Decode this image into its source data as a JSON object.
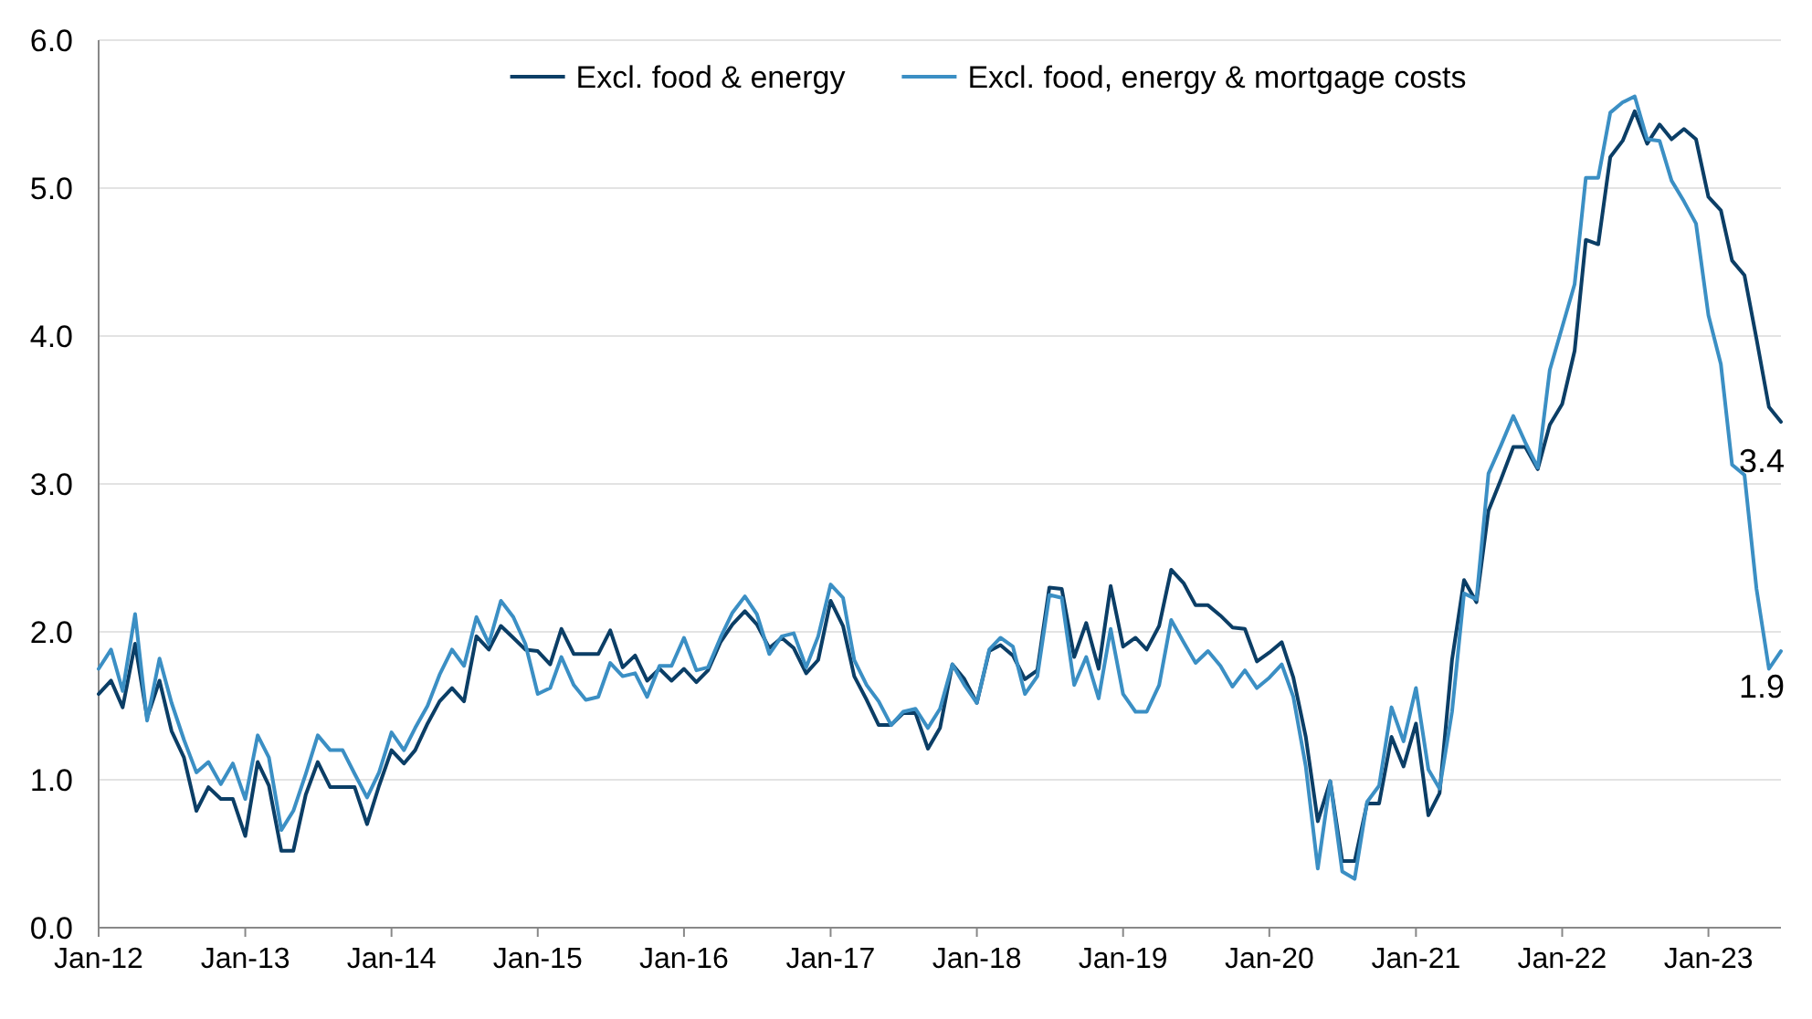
{
  "chart_data": {
    "type": "line",
    "x": [
      "2012-01",
      "2012-02",
      "2012-03",
      "2012-04",
      "2012-05",
      "2012-06",
      "2012-07",
      "2012-08",
      "2012-09",
      "2012-10",
      "2012-11",
      "2012-12",
      "2013-01",
      "2013-02",
      "2013-03",
      "2013-04",
      "2013-05",
      "2013-06",
      "2013-07",
      "2013-08",
      "2013-09",
      "2013-10",
      "2013-11",
      "2013-12",
      "2014-01",
      "2014-02",
      "2014-03",
      "2014-04",
      "2014-05",
      "2014-06",
      "2014-07",
      "2014-08",
      "2014-09",
      "2014-10",
      "2014-11",
      "2014-12",
      "2015-01",
      "2015-02",
      "2015-03",
      "2015-04",
      "2015-05",
      "2015-06",
      "2015-07",
      "2015-08",
      "2015-09",
      "2015-10",
      "2015-11",
      "2015-12",
      "2016-01",
      "2016-02",
      "2016-03",
      "2016-04",
      "2016-05",
      "2016-06",
      "2016-07",
      "2016-08",
      "2016-09",
      "2016-10",
      "2016-11",
      "2016-12",
      "2017-01",
      "2017-02",
      "2017-03",
      "2017-04",
      "2017-05",
      "2017-06",
      "2017-07",
      "2017-08",
      "2017-09",
      "2017-10",
      "2017-11",
      "2017-12",
      "2018-01",
      "2018-02",
      "2018-03",
      "2018-04",
      "2018-05",
      "2018-06",
      "2018-07",
      "2018-08",
      "2018-09",
      "2018-10",
      "2018-11",
      "2018-12",
      "2019-01",
      "2019-02",
      "2019-03",
      "2019-04",
      "2019-05",
      "2019-06",
      "2019-07",
      "2019-08",
      "2019-09",
      "2019-10",
      "2019-11",
      "2019-12",
      "2020-01",
      "2020-02",
      "2020-03",
      "2020-04",
      "2020-05",
      "2020-06",
      "2020-07",
      "2020-08",
      "2020-09",
      "2020-10",
      "2020-11",
      "2020-12",
      "2021-01",
      "2021-02",
      "2021-03",
      "2021-04",
      "2021-05",
      "2021-06",
      "2021-07",
      "2021-08",
      "2021-09",
      "2021-10",
      "2021-11",
      "2021-12",
      "2022-01",
      "2022-02",
      "2022-03",
      "2022-04",
      "2022-05",
      "2022-06",
      "2022-07",
      "2022-08",
      "2022-09",
      "2022-10",
      "2022-11",
      "2022-12",
      "2023-01",
      "2023-02",
      "2023-03",
      "2023-04",
      "2023-05",
      "2023-06",
      "2023-07"
    ],
    "series": [
      {
        "name": "Excl. food & energy",
        "color": "#0b3e66",
        "values": [
          1.58,
          1.67,
          1.49,
          1.92,
          1.42,
          1.67,
          1.33,
          1.15,
          0.79,
          0.95,
          0.87,
          0.87,
          0.62,
          1.12,
          0.96,
          0.52,
          0.52,
          0.9,
          1.12,
          0.95,
          0.95,
          0.95,
          0.7,
          0.96,
          1.2,
          1.11,
          1.2,
          1.38,
          1.53,
          1.62,
          1.53,
          1.97,
          1.88,
          2.04,
          1.96,
          1.88,
          1.87,
          1.78,
          2.02,
          1.85,
          1.85,
          1.85,
          2.01,
          1.76,
          1.84,
          1.67,
          1.75,
          1.67,
          1.75,
          1.66,
          1.74,
          1.93,
          2.05,
          2.14,
          2.05,
          1.89,
          1.96,
          1.89,
          1.72,
          1.81,
          2.21,
          2.04,
          1.7,
          1.54,
          1.37,
          1.37,
          1.45,
          1.45,
          1.21,
          1.35,
          1.78,
          1.68,
          1.52,
          1.87,
          1.91,
          1.84,
          1.68,
          1.74,
          2.3,
          2.29,
          1.83,
          2.06,
          1.75,
          2.31,
          1.9,
          1.96,
          1.88,
          2.04,
          2.42,
          2.33,
          2.18,
          2.18,
          2.11,
          2.03,
          2.02,
          1.8,
          1.86,
          1.93,
          1.69,
          1.29,
          0.72,
          0.99,
          0.45,
          0.45,
          0.84,
          0.84,
          1.29,
          1.09,
          1.38,
          0.76,
          0.91,
          1.81,
          2.35,
          2.2,
          2.82,
          3.03,
          3.25,
          3.25,
          3.1,
          3.4,
          3.54,
          3.9,
          4.65,
          4.62,
          5.21,
          5.32,
          5.52,
          5.3,
          5.43,
          5.33,
          5.4,
          5.33,
          4.94,
          4.85,
          4.51,
          4.41,
          3.98,
          3.52,
          3.42
        ]
      },
      {
        "name": "Excl. food, energy & mortgage costs",
        "color": "#3b8fc4",
        "values": [
          1.75,
          1.88,
          1.6,
          2.12,
          1.4,
          1.82,
          1.52,
          1.27,
          1.05,
          1.12,
          0.97,
          1.11,
          0.87,
          1.3,
          1.15,
          0.66,
          0.79,
          1.04,
          1.3,
          1.2,
          1.2,
          1.04,
          0.88,
          1.05,
          1.32,
          1.2,
          1.35,
          1.5,
          1.71,
          1.88,
          1.77,
          2.1,
          1.92,
          2.21,
          2.1,
          1.92,
          1.58,
          1.62,
          1.83,
          1.64,
          1.54,
          1.56,
          1.79,
          1.7,
          1.72,
          1.56,
          1.77,
          1.77,
          1.96,
          1.74,
          1.76,
          1.96,
          2.13,
          2.24,
          2.12,
          1.85,
          1.97,
          1.99,
          1.76,
          1.97,
          2.32,
          2.23,
          1.81,
          1.64,
          1.53,
          1.37,
          1.46,
          1.48,
          1.35,
          1.48,
          1.78,
          1.64,
          1.52,
          1.88,
          1.96,
          1.9,
          1.58,
          1.7,
          2.25,
          2.23,
          1.64,
          1.83,
          1.55,
          2.02,
          1.58,
          1.46,
          1.46,
          1.64,
          2.08,
          1.93,
          1.79,
          1.87,
          1.77,
          1.63,
          1.74,
          1.62,
          1.69,
          1.78,
          1.56,
          1.09,
          0.4,
          0.99,
          0.38,
          0.33,
          0.85,
          0.96,
          1.49,
          1.26,
          1.62,
          1.07,
          0.94,
          1.46,
          2.26,
          2.22,
          3.07,
          3.26,
          3.46,
          3.28,
          3.11,
          3.77,
          4.06,
          4.35,
          5.07,
          5.07,
          5.51,
          5.58,
          5.62,
          5.33,
          5.32,
          5.05,
          4.91,
          4.76,
          4.14,
          3.81,
          3.13,
          3.06,
          2.29,
          1.75,
          1.87
        ]
      }
    ],
    "xlim": [
      "2012-01",
      "2023-07"
    ],
    "xticks": [
      {
        "value": "2012-01",
        "label": "Jan-12"
      },
      {
        "value": "2013-01",
        "label": "Jan-13"
      },
      {
        "value": "2014-01",
        "label": "Jan-14"
      },
      {
        "value": "2015-01",
        "label": "Jan-15"
      },
      {
        "value": "2016-01",
        "label": "Jan-16"
      },
      {
        "value": "2017-01",
        "label": "Jan-17"
      },
      {
        "value": "2018-01",
        "label": "Jan-18"
      },
      {
        "value": "2019-01",
        "label": "Jan-19"
      },
      {
        "value": "2020-01",
        "label": "Jan-20"
      },
      {
        "value": "2021-01",
        "label": "Jan-21"
      },
      {
        "value": "2022-01",
        "label": "Jan-22"
      },
      {
        "value": "2023-01",
        "label": "Jan-23"
      }
    ],
    "ylim": [
      0,
      6
    ],
    "yticks": [
      {
        "value": 0,
        "label": "0.0"
      },
      {
        "value": 1,
        "label": "1.0"
      },
      {
        "value": 2,
        "label": "2.0"
      },
      {
        "value": 3,
        "label": "3.0"
      },
      {
        "value": 4,
        "label": "4.0"
      },
      {
        "value": 5,
        "label": "5.0"
      },
      {
        "value": 6,
        "label": "6.0"
      }
    ],
    "grid": "y",
    "legend": "top",
    "annotations": [
      {
        "text": "3.4",
        "x": "2023-07",
        "y": 3.4
      },
      {
        "text": "1.9",
        "x": "2023-07",
        "y": 1.9
      }
    ]
  }
}
